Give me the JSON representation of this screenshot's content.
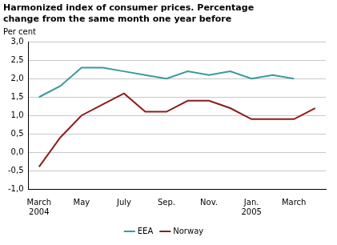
{
  "chart_data": {
    "type": "line",
    "title": [
      "Harmonized index of consumer prices. Percentage",
      "change from the same month one year before"
    ],
    "ylabel": "Per cent",
    "categories": [
      "March 2004",
      null,
      "May",
      null,
      "July",
      null,
      "Sep.",
      null,
      "Nov.",
      null,
      "Jan. 2005",
      null,
      "March",
      null
    ],
    "series": [
      {
        "name": "EEA",
        "color": "#3a9a9c",
        "values": [
          1.5,
          1.8,
          2.3,
          2.3,
          2.2,
          2.1,
          2.0,
          2.2,
          2.1,
          2.2,
          2.0,
          2.1,
          2.0,
          null
        ]
      },
      {
        "name": "Norway",
        "color": "#8c1c1c",
        "values": [
          -0.4,
          0.4,
          1.0,
          1.3,
          1.6,
          1.1,
          1.1,
          1.4,
          1.4,
          1.2,
          0.9,
          0.9,
          0.9,
          1.2
        ]
      }
    ],
    "ylim": [
      -1,
      3
    ],
    "yticks": [
      {
        "value": -1,
        "label": "-1,0"
      },
      {
        "value": -0.5,
        "label": "-0,5"
      },
      {
        "value": 0,
        "label": "0,0"
      },
      {
        "value": 0.5,
        "label": "0,5"
      },
      {
        "value": 1,
        "label": "1,0"
      },
      {
        "value": 1.5,
        "label": "1,5"
      },
      {
        "value": 2,
        "label": "2,0"
      },
      {
        "value": 2.5,
        "label": "2,5"
      },
      {
        "value": 3,
        "label": "3,0"
      }
    ],
    "grid": true,
    "legend": "bottom"
  }
}
